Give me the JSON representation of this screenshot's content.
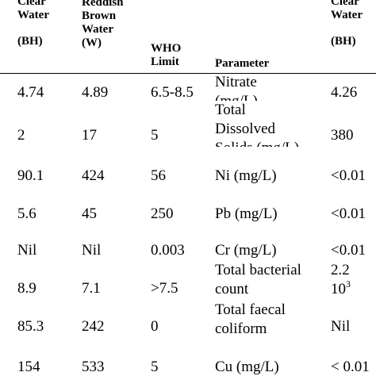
{
  "header": {
    "clear_water_1": "Clear\nWater",
    "clear_water_1_unit": "(BH)",
    "reddish_brown": "Reddish\nBrown\nWater",
    "reddish_brown_unit": "(W)",
    "who_limit": "WHO\nLimit",
    "parameter": "Parameter",
    "clear_water_2": "Clear\nWater",
    "clear_water_2_unit": "(BH)"
  },
  "rows": [
    {
      "bh": "4.74",
      "w": "4.89",
      "who": "6.5-8.5",
      "param": [
        "Nitrate",
        "(mg/L)"
      ],
      "bh2": "4.26"
    },
    {
      "bh": "2",
      "w": "17",
      "who": "5",
      "param": [
        "Total",
        "Dissolved",
        "Solids (mg/L)"
      ],
      "bh2": "380"
    },
    {
      "bh": "90.1",
      "w": "424",
      "who": "56",
      "param": [
        "Ni (mg/L)"
      ],
      "bh2": "<0.01"
    },
    {
      "bh": "5.6",
      "w": "45",
      "who": "250",
      "param": [
        "Pb (mg/L)"
      ],
      "bh2": "<0.01"
    },
    {
      "bh": "Nil",
      "w": "Nil",
      "who": "0.003",
      "param": [
        "Cr (mg/L)"
      ],
      "bh2": "<0.01"
    },
    {
      "bh": "8.9",
      "w": "7.1",
      "who": ">7.5",
      "param": [
        "Total bacterial",
        "count"
      ],
      "bh2": "2.2",
      "bh2_line2": "10",
      "bh2_sup": "3"
    },
    {
      "bh": "85.3",
      "w": "242",
      "who": "0",
      "param": [
        "Total faecal",
        "coliform"
      ],
      "bh2": "Nil"
    },
    {
      "bh": "154",
      "w": "533",
      "who": "5",
      "param": [
        "Cu (mg/L)"
      ],
      "bh2": "< 0.01"
    }
  ]
}
